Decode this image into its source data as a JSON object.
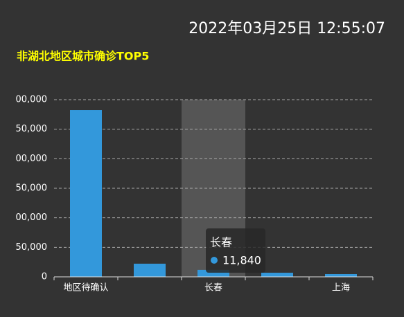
{
  "timestamp": "2022年03月25日 12:55:07",
  "chart_data": {
    "type": "bar",
    "title": "非湖北地区城市确诊TOP5",
    "categories": [
      "地区待确认",
      null,
      "长春",
      null,
      "上海"
    ],
    "values": [
      282400,
      22300,
      11840,
      7000,
      4700
    ],
    "value_labels": [
      null,
      null,
      "11,840",
      null,
      null
    ],
    "color": "#3398db",
    "ylim": [
      0,
      300000
    ],
    "yticks": [
      0,
      {
        "value": 50000,
        "label": "50,000"
      },
      {
        "value": 100000,
        "label": "00,000"
      },
      {
        "value": 150000,
        "label": "50,000"
      },
      {
        "value": 200000,
        "label": "00,000"
      },
      {
        "value": 250000,
        "label": "50,000"
      },
      {
        "value": 300000,
        "label": "00,000"
      }
    ],
    "grid": true
  }
}
